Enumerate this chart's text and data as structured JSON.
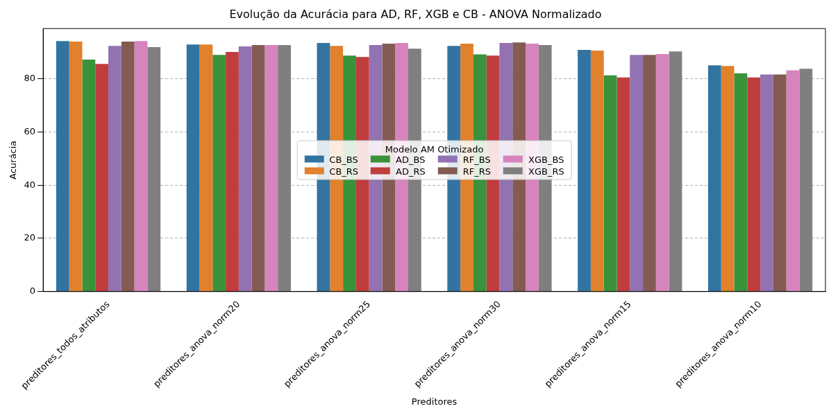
{
  "chart_data": {
    "type": "bar",
    "title": "Evolução da Acurácia para AD, RF, XGB e CB - ANOVA Normalizado",
    "xlabel": "Preditores",
    "ylabel": "Acurácia",
    "legend_title": "Modelo AM Otimizado",
    "legend": "center",
    "grid": "y",
    "categories": [
      "preditores_todos_atributos",
      "preditores_anova_norm20",
      "preditores_anova_norm25",
      "preditores_anova_norm30",
      "preditores_anova_norm15",
      "preditores_anova_norm10"
    ],
    "ylim": [
      0,
      98.9
    ],
    "yticks": [
      0,
      20,
      40,
      60,
      80
    ],
    "series": [
      {
        "name": "CB_BS",
        "color": "#3274a1",
        "values": [
          94.2,
          92.9,
          93.5,
          92.4,
          90.9,
          85.1
        ]
      },
      {
        "name": "CB_RS",
        "color": "#e1812c",
        "values": [
          94.0,
          92.9,
          92.4,
          93.2,
          90.6,
          84.8
        ]
      },
      {
        "name": "AD_BS",
        "color": "#3a923a",
        "values": [
          87.2,
          89.0,
          88.7,
          89.2,
          81.3,
          82.1
        ]
      },
      {
        "name": "AD_RS",
        "color": "#c03d3e",
        "values": [
          85.6,
          90.1,
          88.2,
          88.7,
          80.5,
          80.5
        ]
      },
      {
        "name": "RF_BS",
        "color": "#9372b2",
        "values": [
          92.4,
          92.2,
          92.7,
          93.5,
          89.0,
          81.6
        ]
      },
      {
        "name": "RF_RS",
        "color": "#845b53",
        "values": [
          94.0,
          92.7,
          93.2,
          93.7,
          89.0,
          81.6
        ]
      },
      {
        "name": "XGB_BS",
        "color": "#d684bd",
        "values": [
          94.2,
          92.7,
          93.5,
          93.2,
          89.3,
          83.2
        ]
      },
      {
        "name": "XGB_RS",
        "color": "#7f7f7f",
        "values": [
          91.9,
          92.7,
          91.3,
          92.7,
          90.3,
          83.8
        ]
      }
    ]
  }
}
